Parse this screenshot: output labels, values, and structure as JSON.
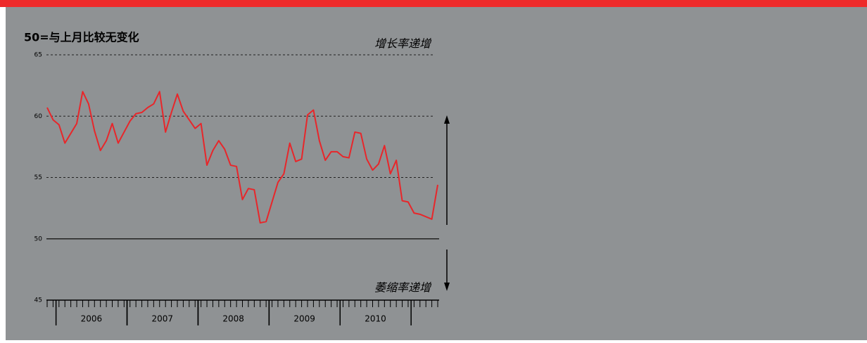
{
  "chart_data": {
    "type": "line",
    "title": "50=与上月比较无变化",
    "annotation_top": "增长率递增",
    "annotation_bottom": "萎缩率递增",
    "categories": [
      null,
      null,
      null,
      null,
      null,
      null,
      null,
      "2006",
      null,
      null,
      null,
      null,
      null,
      null,
      null,
      null,
      null,
      null,
      null,
      "2007",
      null,
      null,
      null,
      null,
      null,
      null,
      null,
      null,
      null,
      null,
      null,
      "2008",
      null,
      null,
      null,
      null,
      null,
      null,
      null,
      null,
      null,
      null,
      null,
      "2009",
      null,
      null,
      null,
      null,
      null,
      null,
      null,
      null,
      null,
      null,
      null,
      "2010",
      null,
      null,
      null,
      null,
      null,
      null,
      null,
      null,
      null,
      null,
      null
    ],
    "series": [
      {
        "name": null,
        "color": "#e8262a",
        "values": [
          60.7,
          59.7,
          59.3,
          57.8,
          58.6,
          59.4,
          62.0,
          61.0,
          58.8,
          57.2,
          58.0,
          59.4,
          57.8,
          58.7,
          59.6,
          60.2,
          60.3,
          60.7,
          61.0,
          62.0,
          58.7,
          60.3,
          61.8,
          60.4,
          59.7,
          59.0,
          59.4,
          56.0,
          57.2,
          58.0,
          57.3,
          56.0,
          55.9,
          53.2,
          54.1,
          54.0,
          51.3,
          51.4,
          53.0,
          54.6,
          55.3,
          57.8,
          56.3,
          56.5,
          60.1,
          60.5,
          58.0,
          56.4,
          57.1,
          57.1,
          56.7,
          56.6,
          58.7,
          58.6,
          56.5,
          55.6,
          56.1,
          57.6,
          55.3,
          56.4,
          53.1,
          53.0,
          52.1,
          52.0,
          51.8,
          51.6,
          54.4
        ]
      }
    ],
    "ylim": [
      45,
      65
    ],
    "yticks": [
      45,
      50,
      55,
      60,
      65
    ],
    "baseline": 50,
    "grid": true
  }
}
